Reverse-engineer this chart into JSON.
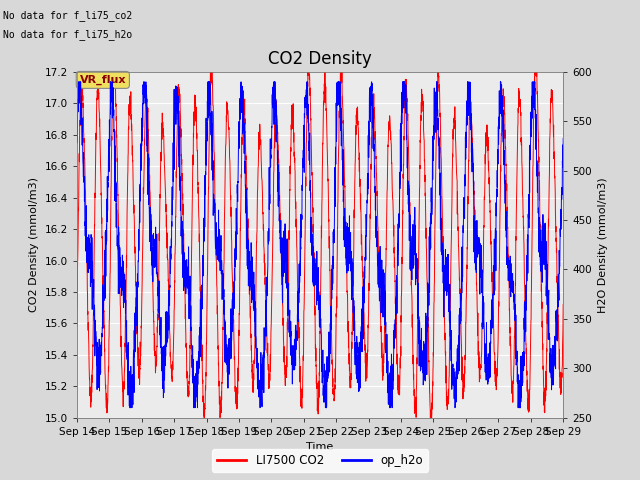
{
  "title": "CO2 Density",
  "xlabel": "Time",
  "ylabel_left": "CO2 Density (mmol/m3)",
  "ylabel_right": "H2O Density (mmol/m3)",
  "ylim_left": [
    15.0,
    17.2
  ],
  "ylim_right": [
    250,
    600
  ],
  "yticks_left": [
    15.0,
    15.2,
    15.4,
    15.6,
    15.8,
    16.0,
    16.2,
    16.4,
    16.6,
    16.8,
    17.0,
    17.2
  ],
  "yticks_right": [
    250,
    300,
    350,
    400,
    450,
    500,
    550,
    600
  ],
  "xtick_labels": [
    "Sep 14",
    "Sep 15",
    "Sep 16",
    "Sep 17",
    "Sep 18",
    "Sep 19",
    "Sep 20",
    "Sep 21",
    "Sep 22",
    "Sep 23",
    "Sep 24",
    "Sep 25",
    "Sep 26",
    "Sep 27",
    "Sep 28",
    "Sep 29"
  ],
  "no_data_text1": "No data for f_li75_co2",
  "no_data_text2": "No data for f_li75_h2o",
  "vr_flux_label": "VR_flux",
  "legend_co2": "LI7500 CO2",
  "legend_h2o": "op_h2o",
  "co2_color": "#FF0000",
  "h2o_color": "#0000FF",
  "bg_color": "#D8D8D8",
  "plot_bg_color": "#EBEBEB",
  "grid_color": "#FFFFFF",
  "title_fontsize": 12,
  "label_fontsize": 8,
  "tick_fontsize": 7.5
}
